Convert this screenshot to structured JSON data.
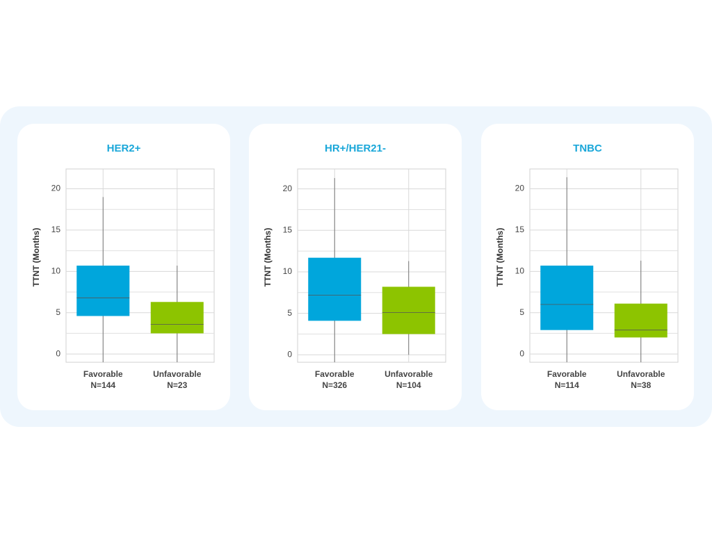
{
  "chart_data": [
    {
      "type": "box",
      "title": "HER2+",
      "ylabel": "TTNT (Months)",
      "categories": [
        "Favorable",
        "Unfavorable"
      ],
      "n_labels": [
        "N=144",
        "N=23"
      ],
      "colors": [
        "#00a6dc",
        "#8dc400"
      ],
      "boxes": [
        {
          "min": -1,
          "q1": 4.6,
          "median": 6.8,
          "q3": 10.7,
          "max": 19.0
        },
        {
          "min": -1,
          "q1": 2.5,
          "median": 3.6,
          "q3": 6.3,
          "max": 10.7
        }
      ],
      "ylim": [
        -1,
        22.4
      ],
      "yticks": [
        0,
        5,
        10,
        15,
        20
      ],
      "minor_yticks": [
        2.5,
        7.5,
        12.5,
        17.5
      ],
      "grid": true
    },
    {
      "type": "box",
      "title": "HR+/HER21-",
      "ylabel": "TTNT (Months)",
      "categories": [
        "Favorable",
        "Unfavorable"
      ],
      "n_labels": [
        "N=326",
        "N=104"
      ],
      "colors": [
        "#00a6dc",
        "#8dc400"
      ],
      "boxes": [
        {
          "min": -0.9,
          "q1": 4.1,
          "median": 7.2,
          "q3": 11.7,
          "max": 21.3
        },
        {
          "min": 0,
          "q1": 2.5,
          "median": 5.1,
          "q3": 8.2,
          "max": 11.3
        }
      ],
      "ylim": [
        -0.9,
        22.4
      ],
      "yticks": [
        0,
        5,
        10,
        15,
        20
      ],
      "minor_yticks": [
        2.5,
        7.5,
        12.5,
        17.5
      ],
      "grid": true
    },
    {
      "type": "box",
      "title": "TNBC",
      "ylabel": "TTNT (Months)",
      "categories": [
        "Favorable",
        "Unfavorable"
      ],
      "n_labels": [
        "N=114",
        "N=38"
      ],
      "colors": [
        "#00a6dc",
        "#8dc400"
      ],
      "boxes": [
        {
          "min": -1,
          "q1": 2.9,
          "median": 6.0,
          "q3": 10.7,
          "max": 21.4
        },
        {
          "min": -1,
          "q1": 2.0,
          "median": 2.9,
          "q3": 6.1,
          "max": 11.3
        }
      ],
      "ylim": [
        -1,
        22.4
      ],
      "yticks": [
        0,
        5,
        10,
        15,
        20
      ],
      "minor_yticks": [
        2.5,
        7.5,
        12.5,
        17.5
      ],
      "grid": true
    }
  ]
}
